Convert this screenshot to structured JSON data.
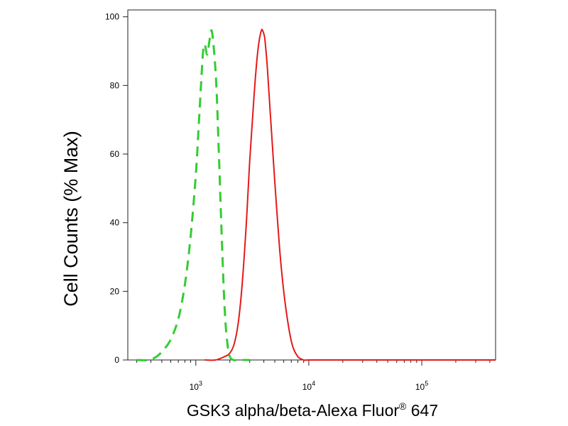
{
  "chart_data": {
    "type": "line",
    "xscale": "log",
    "xlim": [
      250,
      450000
    ],
    "ylim": [
      0,
      102
    ],
    "xlabel": "GSK3 alpha/beta-Alexa Fluor",
    "xlabel_sup": "®",
    "xlabel_suffix": " 647",
    "ylabel": "Cell Counts (% Max)",
    "y_ticks": [
      {
        "value": 0,
        "label": "0"
      },
      {
        "value": 20,
        "label": "20"
      },
      {
        "value": 40,
        "label": "40"
      },
      {
        "value": 60,
        "label": "60"
      },
      {
        "value": 80,
        "label": "80"
      },
      {
        "value": 100,
        "label": "100"
      }
    ],
    "x_ticks": [
      {
        "value": 1000,
        "base": "10",
        "exp": "3"
      },
      {
        "value": 10000,
        "base": "10",
        "exp": "4"
      },
      {
        "value": 100000,
        "base": "10",
        "exp": "5"
      }
    ],
    "series": [
      {
        "color": "#33cc33",
        "style": "dashed",
        "x": [
          300,
          380,
          450,
          520,
          600,
          700,
          800,
          900,
          1000,
          1060,
          1120,
          1160,
          1200,
          1260,
          1320,
          1380,
          1450,
          1520,
          1600,
          1700,
          1800,
          1900,
          2000,
          2150,
          2300,
          2500,
          3000
        ],
        "y": [
          0,
          0,
          1,
          3,
          6,
          12,
          22,
          36,
          54,
          68,
          82,
          90,
          92,
          89,
          93,
          96,
          90,
          80,
          60,
          35,
          15,
          5,
          1,
          0,
          0,
          0,
          0
        ]
      },
      {
        "color": "#e31a1c",
        "style": "solid",
        "x": [
          1200,
          1500,
          1800,
          2000,
          2200,
          2400,
          2600,
          2800,
          3000,
          3200,
          3400,
          3600,
          3800,
          3900,
          4000,
          4100,
          4300,
          4600,
          5000,
          5500,
          6000,
          6600,
          7200,
          8000,
          9000,
          10000,
          15000,
          30000,
          100000,
          300000,
          450000
        ],
        "y": [
          0,
          0,
          1,
          2,
          5,
          12,
          24,
          40,
          58,
          72,
          84,
          92,
          96,
          96,
          95,
          93,
          85,
          70,
          52,
          33,
          20,
          10,
          4,
          1,
          0,
          0,
          0,
          0,
          0,
          0,
          0
        ]
      }
    ]
  }
}
